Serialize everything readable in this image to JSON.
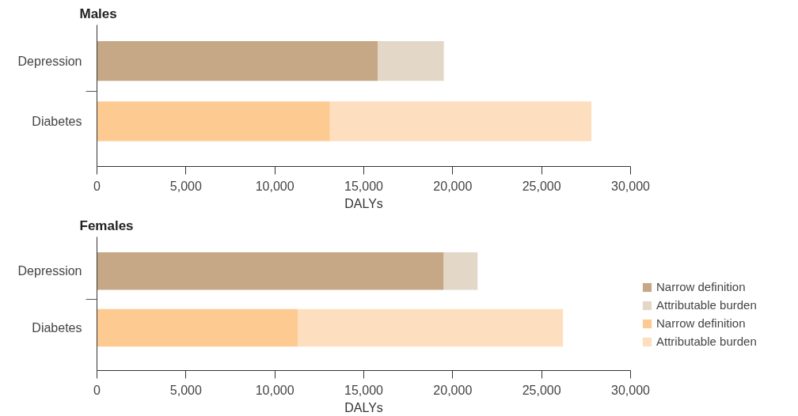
{
  "chart_data": [
    {
      "type": "bar",
      "title": "Males",
      "orientation": "horizontal",
      "stacked": true,
      "categories": [
        "Depression",
        "Diabetes"
      ],
      "xlabel": "DALYs",
      "xlim": [
        0,
        30000
      ],
      "xticks": [
        0,
        {
          "value": 5000,
          "label": "5,000"
        },
        {
          "value": 10000,
          "label": "10,000"
        },
        {
          "value": 15000,
          "label": "15,000"
        },
        {
          "value": 20000,
          "label": "20,000"
        },
        {
          "value": 25000,
          "label": "25,000"
        },
        {
          "value": 30000,
          "label": "30,000"
        }
      ],
      "grid": false,
      "series": [
        {
          "color": "#c6a886",
          "values": [
            15800,
            null
          ]
        },
        {
          "color": "#e3d7c7",
          "values": [
            3700,
            null
          ]
        },
        {
          "color": "#fdca92",
          "values": [
            null,
            13100
          ]
        },
        {
          "color": "#fddebf",
          "values": [
            null,
            14700
          ]
        }
      ]
    },
    {
      "type": "bar",
      "title": "Females",
      "orientation": "horizontal",
      "stacked": true,
      "categories": [
        "Depression",
        "Diabetes"
      ],
      "xlabel": "DALYs",
      "xlim": [
        0,
        30000
      ],
      "xticks": [
        0,
        {
          "value": 5000,
          "label": "5,000"
        },
        {
          "value": 10000,
          "label": "10,000"
        },
        {
          "value": 15000,
          "label": "15,000"
        },
        {
          "value": 20000,
          "label": "20,000"
        },
        {
          "value": 25000,
          "label": "25,000"
        },
        {
          "value": 30000,
          "label": "30,000"
        }
      ],
      "grid": false,
      "legend": "right",
      "series": [
        {
          "name": "Narrow definition",
          "color": "#c6a886",
          "values": [
            19500,
            null
          ]
        },
        {
          "name": "Attributable burden",
          "color": "#e3d7c7",
          "values": [
            1900,
            null
          ]
        },
        {
          "name": "Narrow definition",
          "color": "#fdca92",
          "values": [
            null,
            11300
          ]
        },
        {
          "name": "Attributable burden",
          "color": "#fddebf",
          "values": [
            null,
            14900
          ]
        }
      ]
    }
  ]
}
